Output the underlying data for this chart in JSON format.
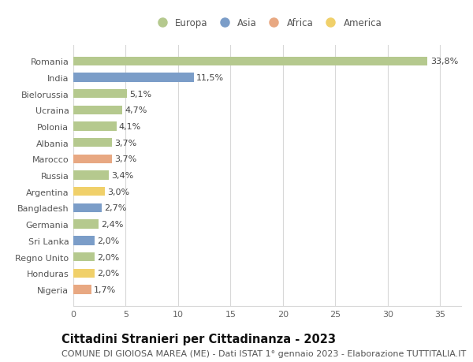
{
  "countries": [
    "Nigeria",
    "Honduras",
    "Regno Unito",
    "Sri Lanka",
    "Germania",
    "Bangladesh",
    "Argentina",
    "Russia",
    "Marocco",
    "Albania",
    "Polonia",
    "Ucraina",
    "Bielorussia",
    "India",
    "Romania"
  ],
  "values": [
    1.7,
    2.0,
    2.0,
    2.0,
    2.4,
    2.7,
    3.0,
    3.4,
    3.7,
    3.7,
    4.1,
    4.7,
    5.1,
    11.5,
    33.8
  ],
  "labels": [
    "1,7%",
    "2,0%",
    "2,0%",
    "2,0%",
    "2,4%",
    "2,7%",
    "3,0%",
    "3,4%",
    "3,7%",
    "3,7%",
    "4,1%",
    "4,7%",
    "5,1%",
    "11,5%",
    "33,8%"
  ],
  "continents": [
    "Africa",
    "America",
    "Europa",
    "Asia",
    "Europa",
    "Asia",
    "America",
    "Europa",
    "Africa",
    "Europa",
    "Europa",
    "Europa",
    "Europa",
    "Asia",
    "Europa"
  ],
  "colors": {
    "Europa": "#b5c98e",
    "Asia": "#7b9dc8",
    "Africa": "#e8a882",
    "America": "#f0d06a"
  },
  "legend_order": [
    "Europa",
    "Asia",
    "Africa",
    "America"
  ],
  "xlim": [
    0,
    37
  ],
  "xticks": [
    0,
    5,
    10,
    15,
    20,
    25,
    30,
    35
  ],
  "title": "Cittadini Stranieri per Cittadinanza - 2023",
  "subtitle": "COMUNE DI GIOIOSA MAREA (ME) - Dati ISTAT 1° gennaio 2023 - Elaborazione TUTTITALIA.IT",
  "background_color": "#ffffff",
  "plot_bg_color": "#ffffff",
  "bar_height": 0.55,
  "grid_color": "#d8d8d8",
  "title_fontsize": 10.5,
  "subtitle_fontsize": 8,
  "label_fontsize": 8,
  "tick_fontsize": 8,
  "legend_fontsize": 8.5
}
